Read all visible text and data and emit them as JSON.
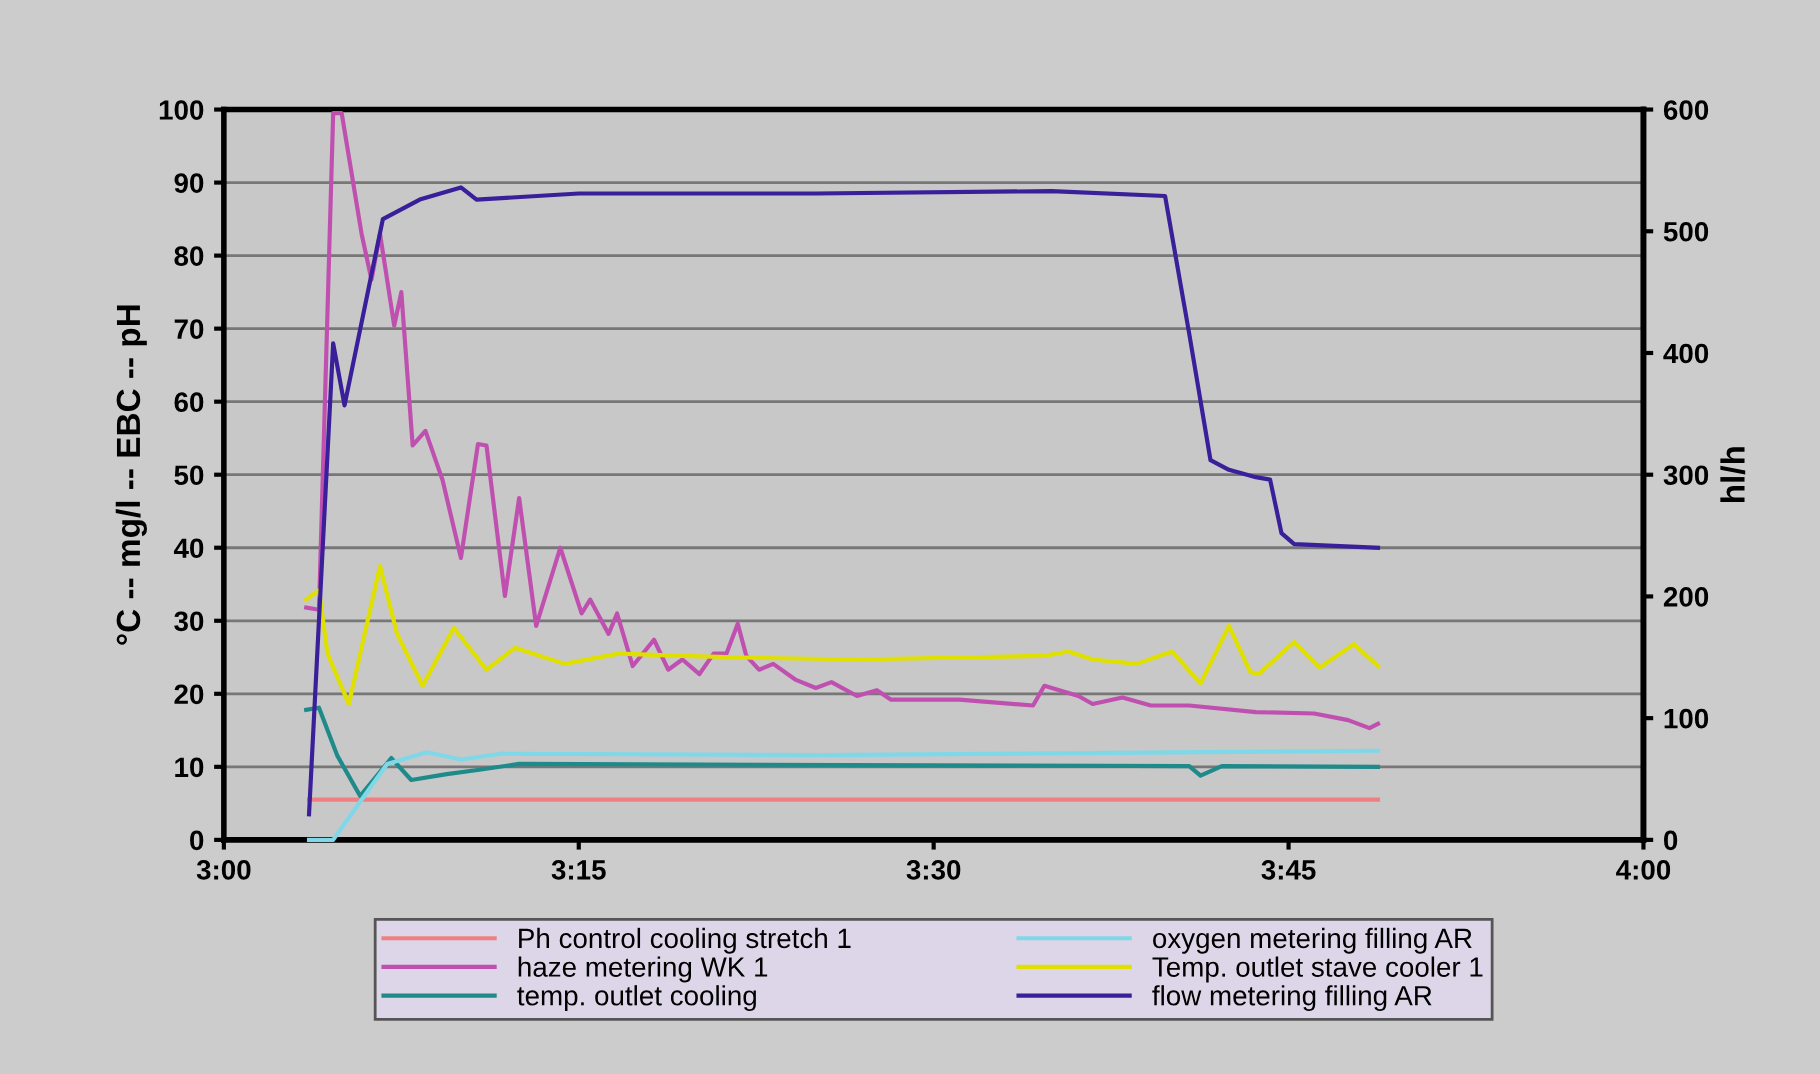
{
  "chart_data": {
    "type": "line",
    "ylabel": "°C -- mg/l -- EBC -- pH",
    "y2label": "hl/h",
    "xlim": [
      3,
      4
    ],
    "xticks": [
      {
        "value": 3,
        "label": "3:00"
      },
      {
        "value": 3.25,
        "label": "3:15"
      },
      {
        "value": 3.5,
        "label": "3:30"
      },
      {
        "value": 3.75,
        "label": "3:45"
      },
      {
        "value": 4,
        "label": "4:00"
      }
    ],
    "ylim": [
      0,
      100
    ],
    "yticks": [
      0,
      10,
      20,
      30,
      40,
      50,
      60,
      70,
      80,
      90,
      100
    ],
    "y2lim": [
      0,
      600
    ],
    "y2ticks": [
      0,
      100,
      200,
      300,
      400,
      500,
      600
    ],
    "grid": "y",
    "legend": "bottom",
    "marker": "none",
    "line_style": "solid",
    "series": [
      {
        "name": "Ph control cooling stretch 1",
        "color": "#f08080",
        "x": [
          3.06,
          3.813
        ],
        "values": [
          5.5,
          5.5
        ]
      },
      {
        "name": "haze metering WK 1",
        "color": "#c050b0",
        "x": [
          3.058,
          3.067,
          3.077,
          3.083,
          3.097,
          3.104,
          3.11,
          3.12,
          3.125,
          3.133,
          3.142,
          3.154,
          3.167,
          3.179,
          3.185,
          3.198,
          3.208,
          3.22,
          3.237,
          3.252,
          3.258,
          3.271,
          3.277,
          3.288,
          3.303,
          3.313,
          3.323,
          3.335,
          3.345,
          3.354,
          3.362,
          3.368,
          3.377,
          3.387,
          3.403,
          3.417,
          3.428,
          3.446,
          3.46,
          3.47,
          3.518,
          3.57,
          3.578,
          3.602,
          3.612,
          3.633,
          3.653,
          3.68,
          3.727,
          3.768,
          3.792,
          3.807,
          3.813
        ],
        "values": [
          31.8,
          31.5,
          99.5,
          99.5,
          83,
          76.7,
          83,
          70.4,
          75,
          54,
          56,
          49.3,
          38.6,
          54.2,
          54,
          33.4,
          46.8,
          29.3,
          40,
          31,
          32.9,
          28.2,
          31,
          23.8,
          27.4,
          23.3,
          24.7,
          22.7,
          25.5,
          25.5,
          29.6,
          25.2,
          23.3,
          24.1,
          21.9,
          20.8,
          21.6,
          19.7,
          20.5,
          19.2,
          19.2,
          18.4,
          21.1,
          19.7,
          18.6,
          19.5,
          18.4,
          18.4,
          17.5,
          17.3,
          16.4,
          15.3,
          15.9
        ]
      },
      {
        "name": "temp. outlet cooling",
        "color": "#1f8a8a",
        "x": [
          3.058,
          3.067,
          3.08,
          3.096,
          3.118,
          3.132,
          3.157,
          3.18,
          3.208,
          3.68,
          3.688,
          3.703,
          3.813
        ],
        "values": [
          17.8,
          18.1,
          11.5,
          6,
          11.2,
          8.2,
          9,
          9.6,
          10.4,
          10.1,
          8.8,
          10.1,
          10
        ]
      },
      {
        "name": "oxygen metering filling AR",
        "color": "#7fd8e8",
        "x": [
          3.06,
          3.077,
          3.097,
          3.115,
          3.143,
          3.167,
          3.195,
          3.421,
          3.813
        ],
        "values": [
          0,
          0,
          5.5,
          10.4,
          12,
          11,
          11.8,
          11.6,
          12.2
        ]
      },
      {
        "name": "Temp. outlet stave cooler 1",
        "color": "#e0e000",
        "x": [
          3.058,
          3.067,
          3.073,
          3.088,
          3.11,
          3.122,
          3.14,
          3.162,
          3.185,
          3.205,
          3.24,
          3.278,
          3.323,
          3.379,
          3.448,
          3.578,
          3.595,
          3.612,
          3.643,
          3.668,
          3.688,
          3.708,
          3.723,
          3.729,
          3.754,
          3.772,
          3.796,
          3.813
        ],
        "values": [
          32.9,
          34.2,
          25.5,
          18.6,
          37.5,
          28.2,
          21.1,
          29,
          23.3,
          26.3,
          24.1,
          25.5,
          25.2,
          24.9,
          24.7,
          25.2,
          25.8,
          24.7,
          24.1,
          25.8,
          21.4,
          29.3,
          23,
          22.7,
          27.1,
          23.6,
          26.8,
          23.8
        ]
      },
      {
        "name": "flow metering filling AR",
        "color": "#3a1f9a",
        "axis": "y2",
        "x": [
          3.06,
          3.077,
          3.085,
          3.112,
          3.138,
          3.167,
          3.178,
          3.25,
          3.417,
          3.583,
          3.663,
          3.68,
          3.695,
          3.708,
          3.727,
          3.737,
          3.745,
          3.754,
          3.813
        ],
        "values": [
          21,
          408,
          357,
          510,
          526,
          536,
          526,
          531,
          531,
          533,
          529,
          416,
          312,
          304,
          298,
          296,
          252,
          243,
          240
        ]
      }
    ]
  }
}
